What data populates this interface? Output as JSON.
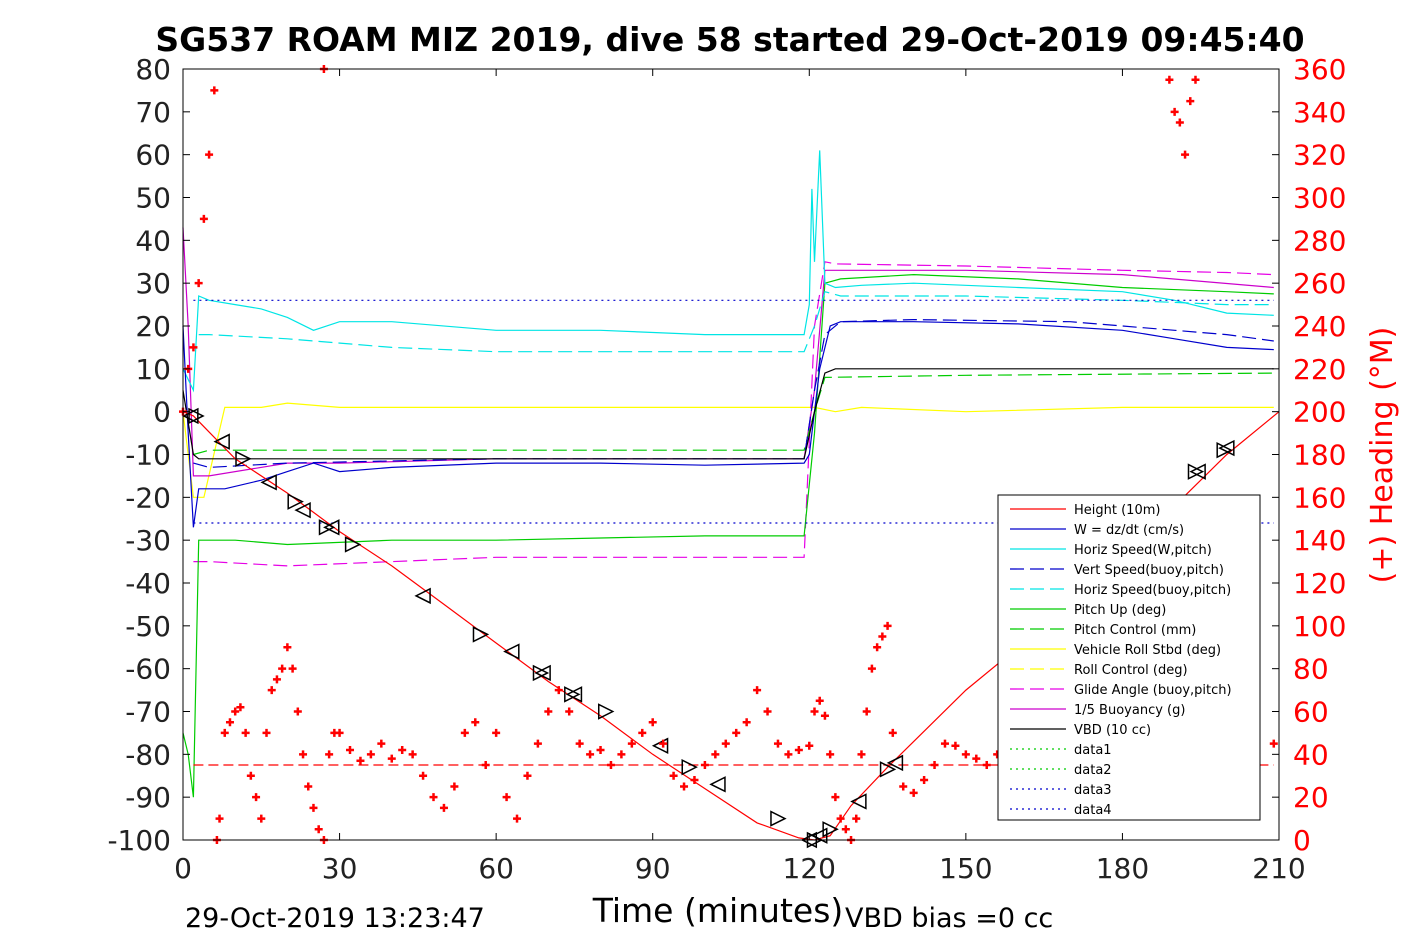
{
  "title": "SG537 ROAM MIZ 2019, dive 58 started 29-Oct-2019 09:45:40",
  "footer_left": "29-Oct-2019 13:23:47",
  "footer_right": "VBD bias =0 cc",
  "colors": {
    "height": "#ff0000",
    "w": "#0000cc",
    "horiz": "#00e5e5",
    "pitch": "#00cc00",
    "roll": "#ffff00",
    "glide": "#e600e6",
    "buoy": "#cc00cc",
    "vbd": "#000000",
    "heading": "#ff0000",
    "right_axis": "#ff0000"
  },
  "chart_data": {
    "type": "line",
    "xlabel": "Time (minutes)",
    "ylabel_right": "(+) Heading (°M)",
    "xlim": [
      0,
      210
    ],
    "ylim": [
      -100,
      80
    ],
    "ylim_right": [
      0,
      360
    ],
    "xticks": [
      "0",
      "30",
      "60",
      "90",
      "120",
      "150",
      "180",
      "210"
    ],
    "yticks": [
      "80",
      "70",
      "60",
      "50",
      "40",
      "30",
      "20",
      "10",
      "0",
      "-10",
      "-20",
      "-30",
      "-40",
      "-50",
      "-60",
      "-70",
      "-80",
      "-90",
      "-100"
    ],
    "yticks_right": [
      "360",
      "340",
      "320",
      "300",
      "280",
      "260",
      "240",
      "220",
      "200",
      "180",
      "160",
      "140",
      "120",
      "100",
      "80",
      "60",
      "40",
      "20",
      "0"
    ],
    "legend_position": "lower-right",
    "legend": [
      {
        "label": "Height (10m)",
        "color": "#ff0000",
        "dash": "solid"
      },
      {
        "label": "W = dz/dt (cm/s)",
        "color": "#0000cc",
        "dash": "solid"
      },
      {
        "label": "Horiz Speed(W,pitch)",
        "color": "#00e5e5",
        "dash": "solid"
      },
      {
        "label": "Vert Speed(buoy,pitch)",
        "color": "#0000cc",
        "dash": "dashed"
      },
      {
        "label": "Horiz Speed(buoy,pitch)",
        "color": "#00e5e5",
        "dash": "dashed"
      },
      {
        "label": "Pitch Up (deg)",
        "color": "#00cc00",
        "dash": "solid"
      },
      {
        "label": "Pitch Control (mm)",
        "color": "#00cc00",
        "dash": "dashed"
      },
      {
        "label": "Vehicle Roll Stbd (deg)",
        "color": "#ffff00",
        "dash": "solid"
      },
      {
        "label": "Roll Control (deg)",
        "color": "#ffff00",
        "dash": "dashed"
      },
      {
        "label": "Glide Angle (buoy,pitch)",
        "color": "#e600e6",
        "dash": "dashed"
      },
      {
        "label": "1/5 Buoyancy (g)",
        "color": "#cc00cc",
        "dash": "solid"
      },
      {
        "label": "VBD (10 cc)",
        "color": "#000000",
        "dash": "solid"
      },
      {
        "label": "data1",
        "color": "#00cc00",
        "dash": "dotted"
      },
      {
        "label": "data2",
        "color": "#00cc00",
        "dash": "dotted"
      },
      {
        "label": "data3",
        "color": "#0000cc",
        "dash": "dotted"
      },
      {
        "label": "data4",
        "color": "#0000cc",
        "dash": "dotted"
      }
    ],
    "series": [
      {
        "key": "height",
        "axis": "left",
        "style": "line",
        "x": [
          0,
          2,
          10,
          20,
          30,
          40,
          50,
          60,
          70,
          80,
          90,
          100,
          110,
          118,
          121,
          124,
          128,
          135,
          150,
          170,
          190,
          200,
          210
        ],
        "y": [
          0,
          -1,
          -11,
          -19,
          -28,
          -36,
          -45,
          -54,
          -63,
          -71,
          -80,
          -88,
          -96,
          -99.5,
          -100,
          -99,
          -92,
          -83,
          -65,
          -45,
          -22,
          -10,
          0
        ]
      },
      {
        "key": "height_markers",
        "axis": "left",
        "style": "markers",
        "x": [
          1.5,
          2.5,
          7.5,
          11.5,
          16.5,
          21.5,
          23,
          27.5,
          28.5,
          32.5,
          46,
          57,
          63,
          68.5,
          69,
          74.5,
          75,
          81,
          91.5,
          97,
          102.5,
          114,
          120,
          121,
          122,
          124,
          129.5,
          135,
          136.5,
          194,
          194.5,
          199.5,
          200
        ],
        "y": [
          -1,
          -1,
          -7,
          -11,
          -16.5,
          -21,
          -23,
          -27,
          -27,
          -31,
          -43,
          -52,
          -56,
          -61,
          -61,
          -66,
          -66,
          -70,
          -78,
          -83,
          -87,
          -95,
          -100,
          -100,
          -99,
          -97.5,
          -91,
          -83.5,
          -82,
          -14,
          -14,
          -9,
          -8.5
        ]
      },
      {
        "key": "w",
        "axis": "left",
        "style": "line",
        "x": [
          0,
          1,
          2,
          3,
          4,
          8,
          15,
          20,
          25,
          30,
          40,
          60,
          80,
          100,
          119,
          120,
          122,
          124,
          126,
          130,
          140,
          160,
          180,
          190,
          200,
          209
        ],
        "y": [
          20,
          -5,
          -27,
          -18,
          -18,
          -18,
          -16,
          -14,
          -12,
          -14,
          -13,
          -12,
          -12,
          -12.5,
          -12,
          -10,
          10,
          20,
          21,
          21,
          21,
          20.5,
          19,
          17,
          15,
          14.5
        ]
      },
      {
        "key": "horiz",
        "axis": "left",
        "style": "line",
        "x": [
          0,
          2,
          3,
          5,
          10,
          15,
          20,
          25,
          30,
          40,
          60,
          80,
          100,
          119,
          120,
          120.5,
          121,
          122,
          123,
          125,
          130,
          140,
          160,
          180,
          190,
          200,
          209
        ],
        "y": [
          10,
          5,
          27,
          26,
          25,
          24,
          22,
          19,
          21,
          21,
          19,
          19,
          18,
          18,
          25,
          52,
          35,
          61,
          30,
          29,
          29.5,
          30,
          29,
          28,
          26,
          23,
          22.5
        ]
      },
      {
        "key": "vert_buoy",
        "axis": "left",
        "style": "dashed",
        "x": [
          2,
          5,
          20,
          60,
          100,
          119,
          121,
          123,
          126,
          140,
          170,
          190,
          200,
          209
        ],
        "y": [
          -12,
          -13,
          -12,
          -11,
          -11,
          -11,
          5,
          18,
          21,
          21.5,
          21,
          19,
          18,
          16.5
        ]
      },
      {
        "key": "horiz_buoy",
        "axis": "left",
        "style": "dashed",
        "x": [
          3,
          5,
          20,
          40,
          60,
          100,
          119,
          121,
          123,
          126,
          150,
          180,
          200,
          209
        ],
        "y": [
          18,
          18,
          17,
          15,
          14,
          14,
          14,
          20,
          28,
          27,
          27,
          26,
          25,
          25
        ]
      },
      {
        "key": "pitch",
        "axis": "left",
        "style": "line",
        "x": [
          0,
          1,
          2,
          3,
          5,
          10,
          20,
          40,
          60,
          80,
          100,
          119,
          121,
          123,
          126,
          140,
          160,
          180,
          200,
          209
        ],
        "y": [
          -75,
          -80,
          -90,
          -30,
          -30,
          -30,
          -31,
          -30,
          -30,
          -29.5,
          -29,
          -29,
          -5,
          30,
          31,
          32,
          31,
          29,
          28,
          27.5
        ]
      },
      {
        "key": "pitch_ctl",
        "axis": "left",
        "style": "dashed",
        "x": [
          2,
          5,
          60,
          119,
          121,
          123,
          150,
          209
        ],
        "y": [
          -10,
          -9,
          -9,
          -9,
          0,
          8,
          8.5,
          9
        ]
      },
      {
        "key": "roll",
        "axis": "left",
        "style": "line",
        "x": [
          0,
          2,
          4,
          8,
          15,
          20,
          30,
          60,
          90,
          119,
          121,
          125,
          130,
          150,
          180,
          209
        ],
        "y": [
          0,
          -20,
          -20,
          1,
          1,
          2,
          1,
          1,
          1,
          1,
          1,
          0,
          1,
          0,
          1,
          1
        ]
      },
      {
        "key": "glide",
        "axis": "left",
        "style": "dashed",
        "x": [
          2,
          5,
          20,
          40,
          60,
          100,
          119,
          121,
          123,
          125,
          150,
          180,
          200,
          209
        ],
        "y": [
          -35,
          -35,
          -36,
          -35,
          -34,
          -34,
          -34,
          20,
          35,
          34.5,
          34,
          33,
          32.5,
          32
        ]
      },
      {
        "key": "buoy",
        "axis": "left",
        "style": "line",
        "x": [
          0,
          1,
          2,
          3,
          5,
          20,
          30,
          60,
          100,
          119,
          121,
          123,
          125,
          150,
          180,
          209
        ],
        "y": [
          43,
          20,
          -15,
          -15,
          -15,
          -12,
          -12,
          -11,
          -11,
          -11,
          5,
          33,
          33,
          33,
          32,
          29
        ]
      },
      {
        "key": "vbd",
        "axis": "left",
        "style": "line",
        "x": [
          0,
          2,
          3,
          60,
          119,
          121,
          123,
          125,
          209
        ],
        "y": [
          5,
          -10,
          -11,
          -11,
          -11,
          0,
          9,
          10,
          10
        ]
      },
      {
        "key": "data_hi",
        "axis": "left",
        "style": "dotted",
        "x": [
          2,
          209
        ],
        "y": [
          26,
          26
        ]
      },
      {
        "key": "data_lo",
        "axis": "left",
        "style": "dotted",
        "x": [
          2,
          209
        ],
        "y": [
          -26,
          -26
        ]
      },
      {
        "key": "data_ref",
        "axis": "left",
        "style": "dashed-red",
        "x": [
          2,
          209
        ],
        "y": [
          -82.5,
          -82.5
        ]
      },
      {
        "key": "heading",
        "axis": "right",
        "style": "plus",
        "x": [
          0,
          1,
          2,
          3,
          4,
          5,
          6,
          27,
          6.5,
          7,
          8,
          9,
          10,
          11,
          12,
          13,
          14,
          15,
          16,
          17,
          18,
          19,
          20,
          21,
          22,
          23,
          24,
          25,
          26,
          27,
          28,
          29,
          30,
          32,
          34,
          36,
          38,
          40,
          42,
          44,
          46,
          48,
          50,
          52,
          54,
          56,
          58,
          60,
          62,
          64,
          66,
          68,
          70,
          72,
          74,
          76,
          78,
          80,
          82,
          84,
          86,
          88,
          90,
          92,
          94,
          96,
          98,
          100,
          102,
          104,
          106,
          108,
          110,
          112,
          114,
          116,
          118,
          120,
          121,
          122,
          123,
          124,
          125,
          126,
          127,
          128,
          129,
          130,
          131,
          132,
          133,
          134,
          135,
          136,
          138,
          140,
          142,
          144,
          146,
          148,
          150,
          152,
          154,
          156,
          158,
          160,
          165,
          170,
          175,
          180,
          185,
          189,
          190,
          191,
          192,
          193,
          194,
          195,
          200,
          205,
          209
        ],
        "y": [
          200,
          220,
          230,
          260,
          290,
          320,
          350,
          360,
          0,
          10,
          50,
          55,
          60,
          62,
          50,
          30,
          20,
          10,
          50,
          70,
          75,
          80,
          90,
          80,
          60,
          40,
          25,
          15,
          5,
          0,
          40,
          50,
          50,
          42,
          37,
          40,
          45,
          38,
          42,
          40,
          30,
          20,
          15,
          25,
          50,
          55,
          35,
          50,
          20,
          10,
          30,
          45,
          60,
          70,
          60,
          45,
          40,
          42,
          35,
          40,
          45,
          50,
          55,
          45,
          30,
          25,
          28,
          35,
          40,
          45,
          50,
          55,
          70,
          60,
          45,
          40,
          42,
          44,
          60,
          65,
          58,
          40,
          20,
          10,
          5,
          0,
          10,
          40,
          60,
          80,
          90,
          95,
          100,
          50,
          25,
          22,
          28,
          35,
          45,
          44,
          40,
          38,
          35,
          40,
          42,
          40,
          40,
          38,
          40,
          42,
          38,
          355,
          340,
          335,
          320,
          345,
          355,
          40,
          38,
          42,
          45
        ]
      }
    ]
  }
}
